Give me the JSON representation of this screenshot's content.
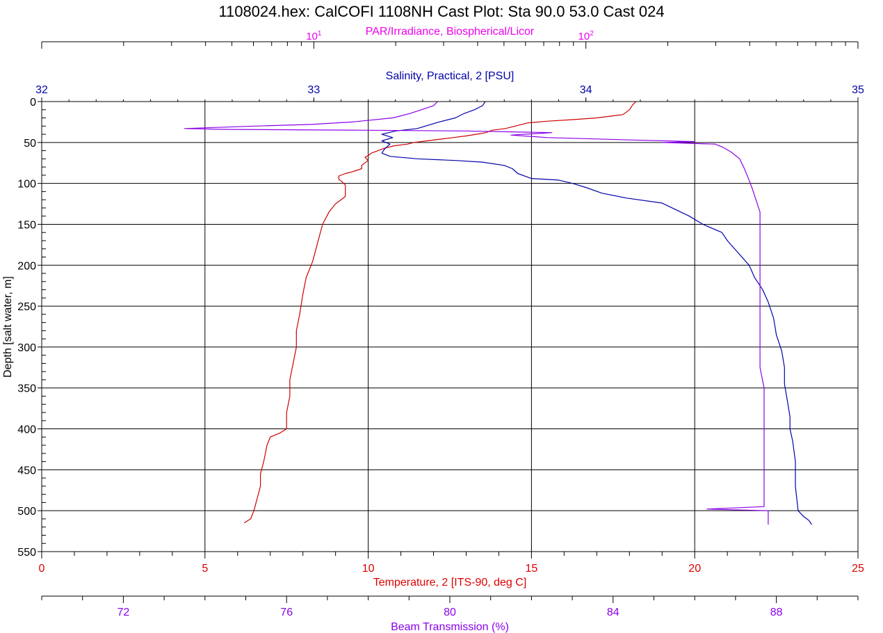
{
  "chart_data": {
    "type": "line",
    "title": "1108024.hex: CalCOFI 1108NH Cast Plot: Sta 90.0 53.0 Cast 024",
    "ylabel": "Depth [salt water, m]",
    "ylim": [
      0,
      550
    ],
    "y_inverted": true,
    "y_ticks": [
      "0",
      "50",
      "100",
      "150",
      "200",
      "250",
      "300",
      "350",
      "400",
      "450",
      "500",
      "550"
    ],
    "grid": true,
    "legend": "none",
    "axes": {
      "par": {
        "label": "PAR/Irradiance, Biospherical/Licor",
        "position": "top-outer",
        "scale": "log",
        "range": [
          1,
          1000
        ],
        "ticks": [
          {
            "value": 10,
            "base": "10",
            "exp": "1"
          },
          {
            "value": 100,
            "base": "10",
            "exp": "2"
          }
        ],
        "color": "#ee00ee"
      },
      "salinity": {
        "label": "Salinity, Practical, 2 [PSU]",
        "position": "top-inner",
        "range": [
          32,
          35
        ],
        "ticks": [
          "32",
          "33",
          "34",
          "35"
        ],
        "color": "#0000aa"
      },
      "temperature": {
        "label": "Temperature, 2 [ITS-90, deg C]",
        "position": "bottom-inner",
        "range": [
          0,
          25
        ],
        "ticks": [
          "0",
          "5",
          "10",
          "15",
          "20",
          "25"
        ],
        "color": "#dd0000"
      },
      "beam": {
        "label": "Beam Transmission (%)",
        "position": "bottom-outer",
        "range": [
          70,
          90
        ],
        "ticks": [
          "72",
          "76",
          "80",
          "84",
          "88"
        ],
        "color": "#8a00ea"
      }
    },
    "series": [
      {
        "axis": "temperature",
        "color": "#cc0000",
        "points": [
          [
            18.2,
            0
          ],
          [
            18.1,
            4
          ],
          [
            18.0,
            10
          ],
          [
            17.8,
            16
          ],
          [
            17.0,
            20
          ],
          [
            16.3,
            22
          ],
          [
            15.5,
            24
          ],
          [
            14.9,
            26
          ],
          [
            14.5,
            30
          ],
          [
            14.2,
            33
          ],
          [
            13.8,
            35
          ],
          [
            13.6,
            38
          ],
          [
            13.3,
            40
          ],
          [
            13.0,
            42
          ],
          [
            12.6,
            44
          ],
          [
            12.2,
            46
          ],
          [
            11.8,
            48
          ],
          [
            11.4,
            50
          ],
          [
            11.2,
            52
          ],
          [
            10.8,
            54
          ],
          [
            10.5,
            57
          ],
          [
            10.3,
            60
          ],
          [
            10.1,
            63
          ],
          [
            10.0,
            66
          ],
          [
            9.9,
            68
          ],
          [
            10.0,
            72
          ],
          [
            9.9,
            75
          ],
          [
            9.8,
            78
          ],
          [
            9.8,
            82
          ],
          [
            9.5,
            86
          ],
          [
            9.3,
            88
          ],
          [
            9.1,
            91
          ],
          [
            9.1,
            95
          ],
          [
            9.2,
            98
          ],
          [
            9.3,
            102
          ],
          [
            9.3,
            110
          ],
          [
            9.3,
            116
          ],
          [
            9.0,
            125
          ],
          [
            8.8,
            135
          ],
          [
            8.6,
            150
          ],
          [
            8.5,
            165
          ],
          [
            8.4,
            180
          ],
          [
            8.3,
            195
          ],
          [
            8.1,
            215
          ],
          [
            8.0,
            235
          ],
          [
            7.9,
            260
          ],
          [
            7.8,
            280
          ],
          [
            7.8,
            300
          ],
          [
            7.7,
            320
          ],
          [
            7.6,
            340
          ],
          [
            7.6,
            360
          ],
          [
            7.5,
            380
          ],
          [
            7.5,
            400
          ],
          [
            7.3,
            405
          ],
          [
            7.0,
            410
          ],
          [
            6.9,
            420
          ],
          [
            6.8,
            440
          ],
          [
            6.7,
            455
          ],
          [
            6.7,
            470
          ],
          [
            6.6,
            485
          ],
          [
            6.5,
            500
          ],
          [
            6.4,
            510
          ],
          [
            6.2,
            515
          ]
        ]
      },
      {
        "axis": "salinity",
        "color": "#0000aa",
        "points": [
          [
            33.63,
            0
          ],
          [
            33.62,
            5
          ],
          [
            33.59,
            10
          ],
          [
            33.55,
            15
          ],
          [
            33.52,
            20
          ],
          [
            33.46,
            25
          ],
          [
            33.43,
            28
          ],
          [
            33.38,
            33
          ],
          [
            33.3,
            36
          ],
          [
            33.25,
            40
          ],
          [
            33.29,
            44
          ],
          [
            33.25,
            48
          ],
          [
            33.28,
            52
          ],
          [
            33.26,
            58
          ],
          [
            33.25,
            63
          ],
          [
            33.28,
            67
          ],
          [
            33.38,
            70
          ],
          [
            33.52,
            72
          ],
          [
            33.62,
            74
          ],
          [
            33.7,
            78
          ],
          [
            33.73,
            82
          ],
          [
            33.75,
            88
          ],
          [
            33.8,
            94
          ],
          [
            33.9,
            96
          ],
          [
            33.95,
            100
          ],
          [
            34.0,
            105
          ],
          [
            34.06,
            112
          ],
          [
            34.15,
            118
          ],
          [
            34.28,
            124
          ],
          [
            34.33,
            132
          ],
          [
            34.38,
            140
          ],
          [
            34.43,
            150
          ],
          [
            34.5,
            160
          ],
          [
            34.52,
            170
          ],
          [
            34.56,
            185
          ],
          [
            34.6,
            200
          ],
          [
            34.62,
            215
          ],
          [
            34.65,
            230
          ],
          [
            34.67,
            245
          ],
          [
            34.69,
            265
          ],
          [
            34.7,
            285
          ],
          [
            34.72,
            305
          ],
          [
            34.73,
            325
          ],
          [
            34.73,
            345
          ],
          [
            34.74,
            365
          ],
          [
            34.75,
            385
          ],
          [
            34.75,
            400
          ],
          [
            34.76,
            415
          ],
          [
            34.77,
            440
          ],
          [
            34.77,
            470
          ],
          [
            34.78,
            500
          ],
          [
            34.8,
            507
          ],
          [
            34.82,
            512
          ],
          [
            34.83,
            517
          ]
        ]
      },
      {
        "axis": "beam",
        "color": "#8a00ea",
        "points": [
          [
            79.7,
            0
          ],
          [
            79.6,
            5
          ],
          [
            79.3,
            10
          ],
          [
            79.0,
            15
          ],
          [
            78.6,
            20
          ],
          [
            77.6,
            25
          ],
          [
            76.6,
            28
          ],
          [
            75.2,
            30
          ],
          [
            73.5,
            33
          ],
          [
            74.5,
            34
          ],
          [
            77.8,
            35
          ],
          [
            80.4,
            36
          ],
          [
            82.5,
            38
          ],
          [
            81.5,
            41
          ],
          [
            82.4,
            44
          ],
          [
            84.5,
            47
          ],
          [
            86.0,
            49
          ],
          [
            85.2,
            50
          ],
          [
            86.5,
            52
          ],
          [
            86.7,
            56
          ],
          [
            86.9,
            62
          ],
          [
            87.1,
            70
          ],
          [
            87.2,
            80
          ],
          [
            87.3,
            92
          ],
          [
            87.4,
            105
          ],
          [
            87.5,
            120
          ],
          [
            87.6,
            135
          ],
          [
            87.6,
            150
          ],
          [
            87.6,
            175
          ],
          [
            87.6,
            200
          ],
          [
            87.6,
            225
          ],
          [
            87.6,
            250
          ],
          [
            87.6,
            275
          ],
          [
            87.6,
            300
          ],
          [
            87.6,
            325
          ],
          [
            87.7,
            350
          ],
          [
            87.7,
            375
          ],
          [
            87.7,
            400
          ],
          [
            87.7,
            425
          ],
          [
            87.7,
            450
          ],
          [
            87.7,
            475
          ],
          [
            87.7,
            495
          ],
          [
            86.3,
            498
          ],
          [
            87.8,
            500
          ],
          [
            87.8,
            510
          ],
          [
            87.8,
            517
          ]
        ]
      }
    ]
  }
}
